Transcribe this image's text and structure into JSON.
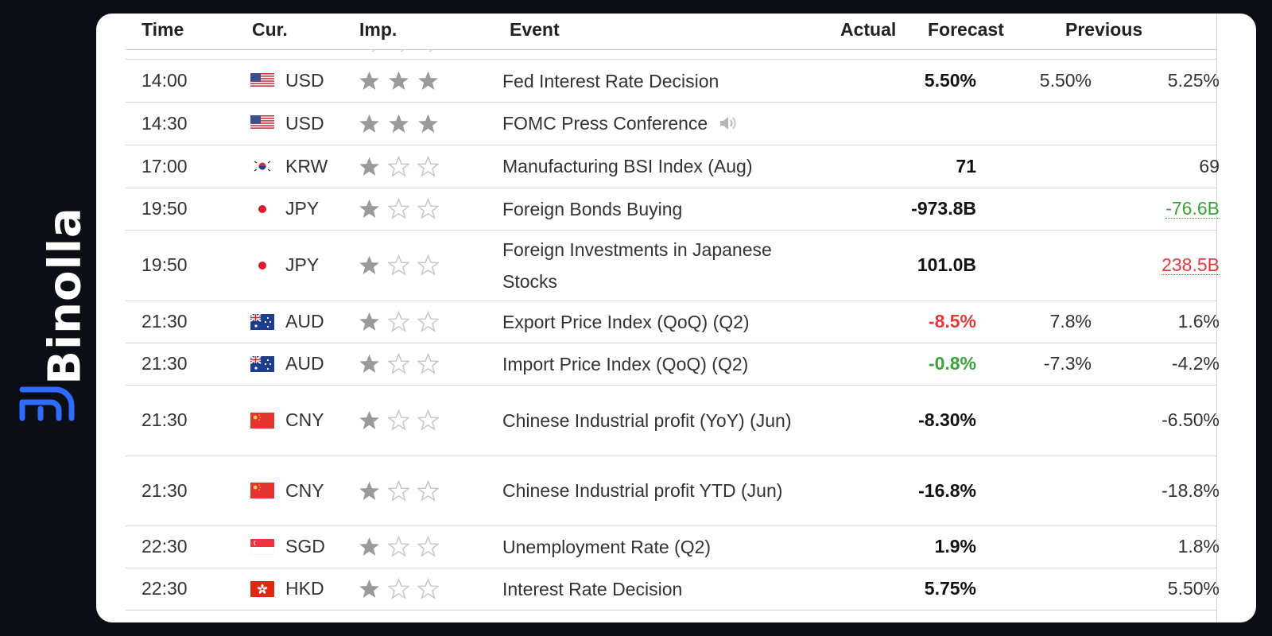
{
  "brand": {
    "name": "Binolla",
    "color": "#2f6bff"
  },
  "columns": {
    "time": "Time",
    "currency": "Cur.",
    "importance": "Imp.",
    "event": "Event",
    "actual": "Actual",
    "forecast": "Forecast",
    "previous": "Previous"
  },
  "colors": {
    "positive": "#3aa33a",
    "negative": "#e23a3a",
    "star_filled": "#9a9a9a"
  },
  "rows": [
    {
      "time": "14:00",
      "flag": "us-flag-icon",
      "currency": "USD",
      "stars": 3,
      "event": "Fed Interest Rate Decision",
      "actual": "5.50%",
      "forecast": "5.50%",
      "previous": "5.25%"
    },
    {
      "time": "14:30",
      "flag": "us-flag-icon",
      "currency": "USD",
      "stars": 3,
      "event": "FOMC Press Conference",
      "speaker": "speaker-icon",
      "actual": "",
      "forecast": "",
      "previous": ""
    },
    {
      "time": "17:00",
      "flag": "kr-flag-icon",
      "currency": "KRW",
      "stars": 1,
      "event": "Manufacturing BSI Index (Aug)",
      "actual": "71",
      "forecast": "",
      "previous": "69"
    },
    {
      "time": "19:50",
      "flag": "jp-flag-icon",
      "currency": "JPY",
      "stars": 1,
      "event": "Foreign Bonds Buying",
      "actual": "-973.8B",
      "forecast": "",
      "previous": "-76.6B",
      "previous_color": "green"
    },
    {
      "time": "19:50",
      "flag": "jp-flag-icon",
      "currency": "JPY",
      "stars": 1,
      "event": "Foreign Investments in Japanese Stocks",
      "actual": "101.0B",
      "forecast": "",
      "previous": "238.5B",
      "previous_color": "red"
    },
    {
      "time": "21:30",
      "flag": "au-flag-icon",
      "currency": "AUD",
      "stars": 1,
      "event": "Export Price Index (QoQ) (Q2)",
      "actual": "-8.5%",
      "actual_color": "red",
      "forecast": "7.8%",
      "previous": "1.6%"
    },
    {
      "time": "21:30",
      "flag": "au-flag-icon",
      "currency": "AUD",
      "stars": 1,
      "event": "Import Price Index (QoQ) (Q2)",
      "actual": "-0.8%",
      "actual_color": "green",
      "forecast": "-7.3%",
      "previous": "-4.2%"
    },
    {
      "time": "21:30",
      "flag": "cn-flag-icon",
      "currency": "CNY",
      "stars": 1,
      "event": "Chinese Industrial profit (YoY) (Jun)",
      "actual": "-8.30%",
      "forecast": "",
      "previous": "-6.50%"
    },
    {
      "time": "21:30",
      "flag": "cn-flag-icon",
      "currency": "CNY",
      "stars": 1,
      "event": "Chinese Industrial profit YTD (Jun)",
      "actual": "-16.8%",
      "forecast": "",
      "previous": "-18.8%"
    },
    {
      "time": "22:30",
      "flag": "sg-flag-icon",
      "currency": "SGD",
      "stars": 1,
      "event": "Unemployment Rate (Q2)",
      "actual": "1.9%",
      "forecast": "",
      "previous": "1.8%"
    },
    {
      "time": "22:30",
      "flag": "hk-flag-icon",
      "currency": "HKD",
      "stars": 1,
      "event": "Interest Rate Decision",
      "actual": "5.75%",
      "forecast": "",
      "previous": "5.50%"
    }
  ]
}
